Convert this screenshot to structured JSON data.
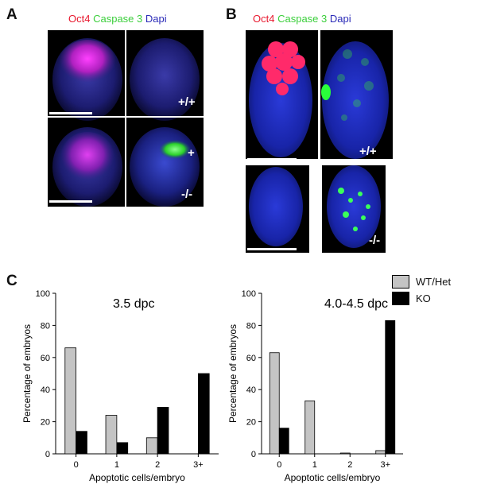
{
  "panels": {
    "a": {
      "letter": "A",
      "stain": {
        "oct4": "Oct4",
        "casp": "Caspase 3",
        "dapi": "Dapi"
      },
      "genotype_top": "+/+",
      "genotype_bottom": "-/-",
      "plus_mark": "+"
    },
    "b": {
      "letter": "B",
      "stain": {
        "oct4": "Oct4",
        "casp": "Caspase 3",
        "dapi": "Dapi"
      },
      "genotype_top": "+/+",
      "genotype_bottom": "-/-"
    },
    "c": {
      "letter": "C"
    }
  },
  "legend": {
    "items": [
      {
        "label": "WT/Het",
        "color": "#c4c4c4"
      },
      {
        "label": "KO",
        "color": "#000000"
      }
    ]
  },
  "chart_data": [
    {
      "type": "bar",
      "title": "3.5 dpc",
      "xlabel": "Apoptotic cells/embryo",
      "ylabel": "Percentage of embryos",
      "categories": [
        "0",
        "1",
        "2",
        "3+"
      ],
      "ylim": [
        0,
        100
      ],
      "yticks": [
        "0",
        "20",
        "40",
        "60",
        "80",
        "100"
      ],
      "series": [
        {
          "name": "WT/Het",
          "color": "#c4c4c4",
          "values": [
            66,
            24,
            10,
            0
          ]
        },
        {
          "name": "KO",
          "color": "#000000",
          "values": [
            14,
            7,
            29,
            50
          ]
        }
      ]
    },
    {
      "type": "bar",
      "title": "4.0-4.5 dpc",
      "xlabel": "Apoptotic cells/embryo",
      "ylabel": "Percentage of embryos",
      "categories": [
        "0",
        "1",
        "2",
        "3+"
      ],
      "ylim": [
        0,
        100
      ],
      "yticks": [
        "0",
        "20",
        "40",
        "60",
        "80",
        "100"
      ],
      "series": [
        {
          "name": "WT/Het",
          "color": "#c4c4c4",
          "values": [
            63,
            33,
            0.5,
            2
          ]
        },
        {
          "name": "KO",
          "color": "#000000",
          "values": [
            16,
            0,
            0,
            83
          ]
        }
      ]
    }
  ]
}
